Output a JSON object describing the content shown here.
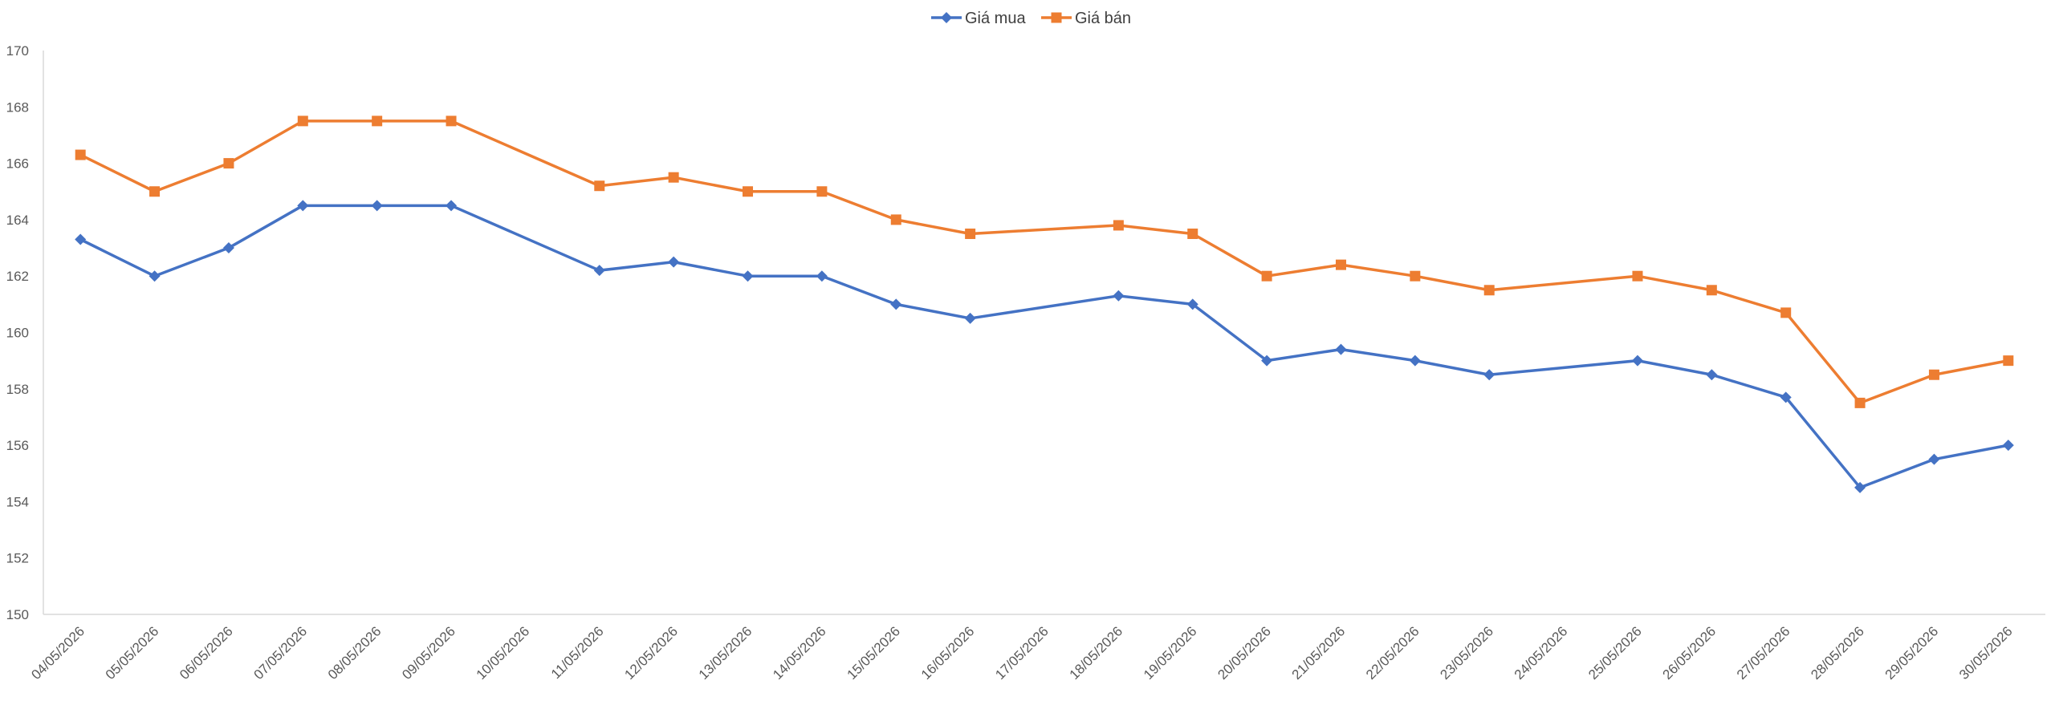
{
  "chart_data": {
    "type": "line",
    "title": "",
    "xlabel": "",
    "ylabel": "",
    "ylim": [
      150,
      170
    ],
    "ytick_step": 2,
    "grid": false,
    "legend_position": "top-center",
    "categories": [
      "04/05/2026",
      "05/05/2026",
      "06/05/2026",
      "07/05/2026",
      "08/05/2026",
      "09/05/2026",
      "10/05/2026",
      "11/05/2026",
      "12/05/2026",
      "13/05/2026",
      "14/05/2026",
      "15/05/2026",
      "16/05/2026",
      "17/05/2026",
      "18/05/2026",
      "19/05/2026",
      "20/05/2026",
      "21/05/2026",
      "22/05/2026",
      "23/05/2026",
      "24/05/2026",
      "25/05/2026",
      "26/05/2026",
      "27/05/2026",
      "28/05/2026",
      "29/05/2026",
      "30/05/2026"
    ],
    "series": [
      {
        "name": "Giá mua",
        "color": "#4472C4",
        "marker": "diamond",
        "values": [
          163.3,
          162,
          163,
          164.5,
          164.5,
          164.5,
          null,
          162.2,
          162.5,
          162,
          162,
          161,
          160.5,
          null,
          161.3,
          161,
          159,
          159.4,
          159,
          158.5,
          null,
          159,
          158.5,
          157.7,
          154.5,
          155.5,
          156
        ]
      },
      {
        "name": "Giá bán",
        "color": "#ED7D31",
        "marker": "square",
        "values": [
          166.3,
          165,
          166,
          167.5,
          167.5,
          167.5,
          null,
          165.2,
          165.5,
          165,
          165,
          164,
          163.5,
          null,
          163.8,
          163.5,
          162,
          162.4,
          162,
          161.5,
          null,
          162,
          161.5,
          160.7,
          157.5,
          158.5,
          159
        ]
      }
    ]
  }
}
